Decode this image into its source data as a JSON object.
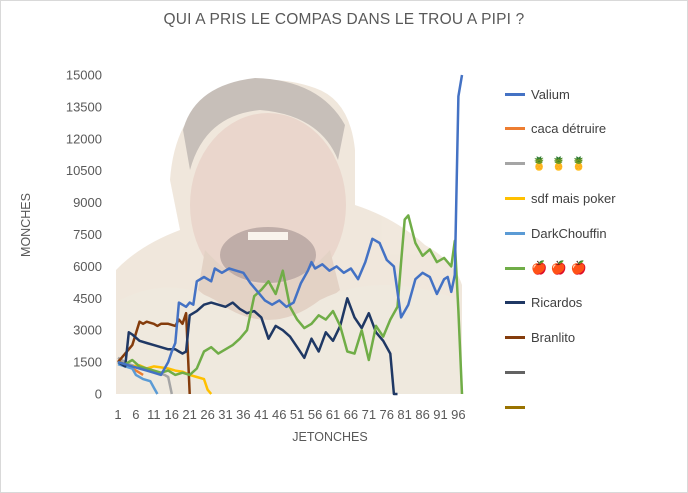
{
  "chart_data": {
    "type": "line",
    "title": "QUI A PRIS LE COMPAS DANS LE TROU A PIPI ?",
    "xlabel": "JETONCHES",
    "ylabel": "MONCHES",
    "ylim": [
      0,
      15000
    ],
    "yticks": [
      "0",
      "1500",
      "3000",
      "4500",
      "6000",
      "7500",
      "9000",
      "10500",
      "12000",
      "13500",
      "15000"
    ],
    "xlim": [
      1,
      97
    ],
    "xticks": [
      "1",
      "6",
      "11",
      "16",
      "21",
      "26",
      "31",
      "36",
      "41",
      "46",
      "51",
      "56",
      "61",
      "66",
      "71",
      "76",
      "81",
      "86",
      "91",
      "96"
    ],
    "grid": false,
    "legend_position": "right",
    "background_image": "laughing-man-meme-photo",
    "series": [
      {
        "name": "Valium",
        "color": "#4472c4",
        "x": [
          1,
          3,
          5,
          7,
          9,
          11,
          13,
          15,
          16,
          17,
          18,
          20,
          21,
          22,
          23,
          25,
          27,
          28,
          30,
          32,
          34,
          36,
          38,
          40,
          42,
          44,
          46,
          48,
          50,
          52,
          54,
          55,
          56,
          58,
          60,
          62,
          64,
          66,
          68,
          70,
          72,
          74,
          76,
          78,
          80,
          82,
          84,
          86,
          88,
          90,
          92,
          93,
          94,
          95,
          96,
          97
        ],
        "values": [
          1500,
          1400,
          1300,
          1200,
          1100,
          1000,
          900,
          1500,
          2000,
          2400,
          4300,
          4100,
          4300,
          4200,
          5300,
          5500,
          5300,
          5900,
          5700,
          5900,
          5800,
          5700,
          5200,
          4800,
          4400,
          4200,
          4400,
          4100,
          4300,
          5200,
          5800,
          6200,
          5900,
          6100,
          5800,
          6000,
          5700,
          5900,
          5400,
          6200,
          7300,
          7100,
          6300,
          6000,
          3600,
          4200,
          5400,
          5700,
          5500,
          4700,
          5400,
          5500,
          4800,
          5600,
          14000,
          15000
        ]
      },
      {
        "name": "caca détruire",
        "color": "#ed7d31",
        "x": [
          1,
          2,
          3,
          4,
          5,
          6,
          7,
          8
        ],
        "values": [
          1600,
          1500,
          1400,
          1300,
          1200,
          1100,
          1000,
          900
        ]
      },
      {
        "name": "🍍 🍍 🍍",
        "color": "#a5a5a5",
        "x": [
          1,
          2,
          3,
          4,
          5,
          6,
          7,
          8,
          9,
          10,
          11,
          12,
          13,
          14,
          15,
          16
        ],
        "values": [
          1700,
          1600,
          1500,
          1400,
          1350,
          1300,
          1250,
          1200,
          1150,
          1100,
          1050,
          1000,
          950,
          900,
          800,
          0
        ]
      },
      {
        "name": "sdf mais poker",
        "color": "#ffc000",
        "x": [
          1,
          3,
          5,
          7,
          9,
          11,
          13,
          15,
          17,
          19,
          21,
          23,
          25,
          26,
          27
        ],
        "values": [
          1500,
          1400,
          1300,
          1350,
          1200,
          1300,
          1250,
          1200,
          1100,
          1050,
          900,
          800,
          700,
          200,
          0
        ]
      },
      {
        "name": "DarkChouffin",
        "color": "#5b9bd5",
        "x": [
          1,
          3,
          5,
          6,
          8,
          10,
          11,
          12
        ],
        "values": [
          1400,
          1300,
          1200,
          900,
          700,
          600,
          300,
          0
        ]
      },
      {
        "name": "🍎 🍎 🍎",
        "color": "#70ad47",
        "x": [
          1,
          3,
          5,
          7,
          9,
          11,
          13,
          15,
          17,
          19,
          21,
          23,
          25,
          27,
          29,
          31,
          33,
          35,
          37,
          39,
          41,
          43,
          45,
          47,
          49,
          51,
          53,
          55,
          57,
          59,
          61,
          63,
          65,
          67,
          69,
          71,
          73,
          75,
          77,
          79,
          80,
          81,
          82,
          84,
          86,
          88,
          90,
          92,
          94,
          95,
          96,
          97
        ],
        "values": [
          1500,
          1400,
          1600,
          1300,
          1200,
          1100,
          1000,
          1100,
          900,
          1000,
          900,
          1200,
          2000,
          2200,
          1900,
          2100,
          2300,
          2600,
          3000,
          4600,
          4900,
          5300,
          4700,
          5800,
          4100,
          3500,
          3100,
          3300,
          3700,
          3500,
          3900,
          3200,
          2000,
          1900,
          3000,
          1600,
          3200,
          2700,
          3500,
          4100,
          6200,
          8200,
          8400,
          7100,
          6500,
          6800,
          6200,
          6400,
          6000,
          7200,
          3900,
          0
        ]
      },
      {
        "name": "Ricardos",
        "color": "#1f3864",
        "x": [
          1,
          3,
          4,
          5,
          7,
          9,
          11,
          13,
          15,
          17,
          18,
          19,
          20,
          21,
          23,
          25,
          27,
          29,
          31,
          33,
          35,
          37,
          39,
          41,
          43,
          45,
          47,
          49,
          51,
          53,
          55,
          57,
          59,
          61,
          63,
          65,
          67,
          69,
          71,
          73,
          75,
          77,
          78,
          79
        ],
        "values": [
          1500,
          1300,
          2900,
          2800,
          2500,
          2400,
          2300,
          2200,
          2100,
          2100,
          2000,
          1900,
          2000,
          3700,
          3900,
          4200,
          4300,
          4200,
          4100,
          4300,
          4000,
          3800,
          3900,
          3600,
          2600,
          3200,
          3000,
          2700,
          2200,
          1700,
          2600,
          2000,
          2900,
          2500,
          3200,
          4500,
          3600,
          3100,
          3800,
          2900,
          2500,
          1900,
          0,
          0
        ]
      },
      {
        "name": "Branlito",
        "color": "#843c0c",
        "x": [
          1,
          3,
          5,
          7,
          8,
          9,
          10,
          11,
          12,
          13,
          15,
          17,
          18,
          19,
          20,
          21
        ],
        "values": [
          1500,
          1900,
          2300,
          3400,
          3300,
          3400,
          3350,
          3300,
          3200,
          3300,
          3300,
          3200,
          3500,
          3300,
          3800,
          0
        ]
      },
      {
        "name": "",
        "color": "#636363",
        "x": [],
        "values": []
      },
      {
        "name": "",
        "color": "#997300",
        "x": [],
        "values": []
      }
    ]
  }
}
